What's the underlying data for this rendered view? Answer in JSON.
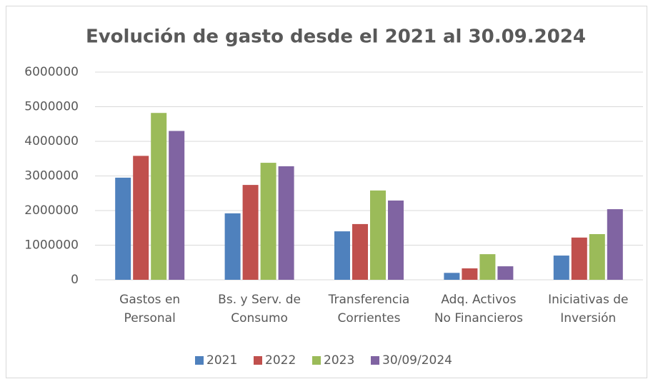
{
  "chart_data": {
    "type": "bar",
    "title": "Evolución de gasto desde el 2021 al 30.09.2024",
    "categories": [
      "Gastos en\nPersonal",
      "Bs. y Serv. de\nConsumo",
      "Transferencia\nCorrientes",
      "Adq. Activos\nNo Financieros",
      "Iniciativas de\nInversión"
    ],
    "series": [
      {
        "name": "2021",
        "color": "#4f81bd",
        "values": [
          2950000,
          1920000,
          1400000,
          200000,
          700000
        ]
      },
      {
        "name": "2022",
        "color": "#c0504d",
        "values": [
          3580000,
          2740000,
          1610000,
          330000,
          1220000
        ]
      },
      {
        "name": "2023",
        "color": "#9bbb59",
        "values": [
          4820000,
          3380000,
          2580000,
          740000,
          1320000
        ]
      },
      {
        "name": "30/09/2024",
        "color": "#8064a2",
        "values": [
          4300000,
          3280000,
          2290000,
          390000,
          2040000
        ]
      }
    ],
    "ylim": [
      0,
      6000000
    ],
    "yticks": [
      0,
      1000000,
      2000000,
      3000000,
      4000000,
      5000000,
      6000000
    ],
    "grid": true,
    "legend": "bottom"
  }
}
